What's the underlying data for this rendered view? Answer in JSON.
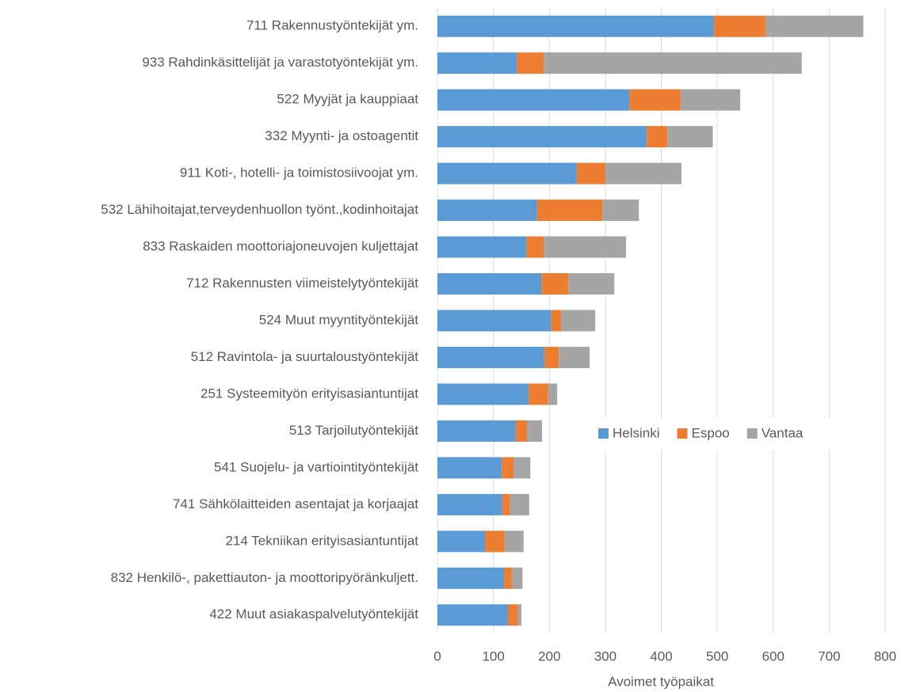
{
  "chart_data": {
    "type": "stacked_barh",
    "categories": [
      "711 Rakennustyöntekijät ym.",
      "933 Rahdinkäsittelijät ja varastotyöntekijät ym.",
      "522 Myyjät ja kauppiaat",
      "332 Myynti- ja ostoagentit",
      "911 Koti-, hotelli- ja toimistosiivoojat ym.",
      "532 Lähihoitajat,terveydenhuollon työnt.,kodinhoitajat",
      "833 Raskaiden moottoriajoneuvojen kuljettajat",
      "712 Rakennusten viimeistelytyöntekijät",
      "524 Muut myyntityöntekijät",
      "512 Ravintola- ja suurtaloustyöntekijät",
      "251 Systeemityön erityisasiantuntijat",
      "513 Tarjoilutyöntekijät",
      "541 Suojelu- ja vartiointityöntekijät",
      "741 Sähkölaitteiden asentajat ja korjaajat",
      "214 Tekniikan erityisasiantuntijat",
      "832 Henkilö-, pakettiauton- ja moottoripyöränkuljett.",
      "422 Muut asiakaspalvelutyöntekijät"
    ],
    "series": [
      {
        "name": "Helsinki",
        "color": "#5b9bd5",
        "values": [
          494,
          142,
          343,
          374,
          249,
          178,
          159,
          186,
          203,
          191,
          163,
          140,
          115,
          116,
          85,
          119,
          126
        ]
      },
      {
        "name": "Espoo",
        "color": "#ed7d31",
        "values": [
          92,
          48,
          92,
          37,
          51,
          117,
          31,
          48,
          18,
          26,
          35,
          20,
          21,
          14,
          35,
          14,
          17
        ]
      },
      {
        "name": "Vantaa",
        "color": "#a5a5a5",
        "values": [
          175,
          461,
          106,
          81,
          136,
          65,
          147,
          82,
          61,
          55,
          16,
          27,
          30,
          34,
          34,
          19,
          7
        ]
      }
    ],
    "xlabel": "Avoimet työpaikat",
    "xlim": [
      0,
      800
    ],
    "xticks": [
      0,
      100,
      200,
      300,
      400,
      500,
      600,
      700,
      800
    ],
    "grid": true
  }
}
